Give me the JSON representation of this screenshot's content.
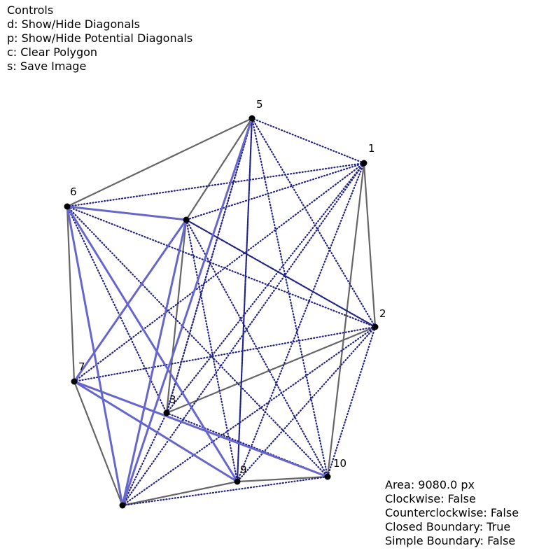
{
  "controls": {
    "title": "Controls",
    "items": [
      "d: Show/Hide Diagonals",
      "p: Show/Hide Potential Diagonals",
      "c: Clear Polygon",
      "s: Save Image"
    ]
  },
  "stats": {
    "area": "Area: 9080.0 px",
    "clockwise": "Clockwise: False",
    "counterclockwise": "Counterclockwise: False",
    "closed_boundary": "Closed Boundary: True",
    "simple_boundary": "Simple Boundary: False"
  },
  "vertex_labels": [
    "1",
    "2",
    "3",
    "5",
    "6",
    "7",
    "9",
    "10"
  ],
  "colors": {
    "boundary_edge": "#666666",
    "diagonal": "#6666cc",
    "potential_diagonal": "#222288",
    "vertex": "#000000",
    "background": "#ffffff"
  }
}
